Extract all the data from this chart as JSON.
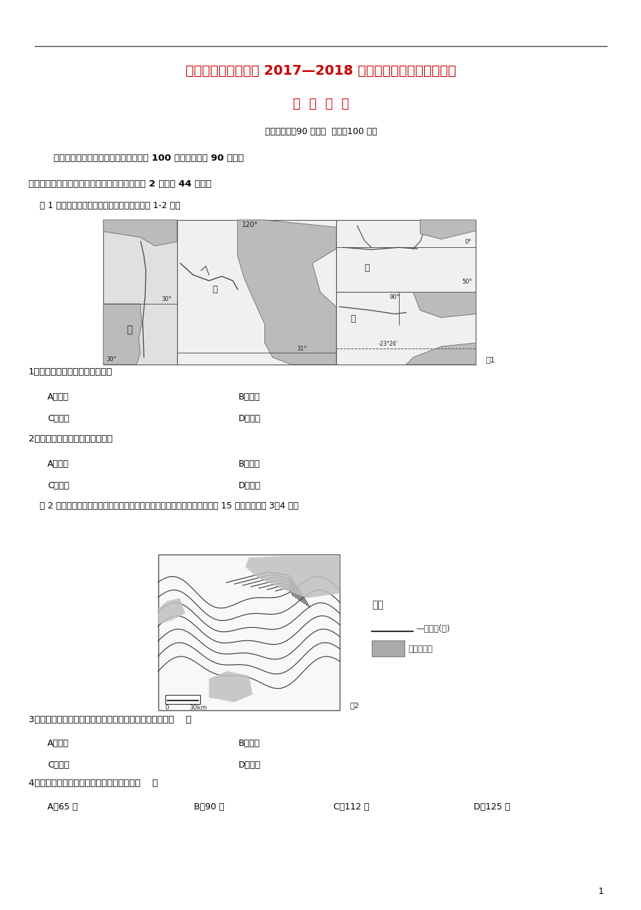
{
  "bg_color": "#ffffff",
  "page_width": 9.2,
  "page_height": 13.03,
  "title1": "周宁一中、政和一中 2017—2018 学年度第一学期第一次联考",
  "title2": "地  理  试  题",
  "subtitle": "（考试时间：90 分钟；  满分：100 分）",
  "intro": "本试卷分选择题和综合题两部分。满分 100 分，考试时间 90 分钟。",
  "section1": "一、选择题：（每小题只有一个正确答案，每题 2 分，共 44 分。）",
  "fig1_caption": "    图 1 为不同区域的四条河流示意图，读图完成 1-2 题。",
  "fig1_label": "图1",
  "q1": "1．四条河流中流量变化最小的是",
  "q1_A": "A．甲河",
  "q1_B": "B．乙河",
  "q1_C": "C．丙河",
  "q1_D": "D．丁河",
  "q2": "2．四条河流中航运价值最高的是",
  "q2_A": "A．甲河",
  "q2_B": "B．乙河",
  "q2_C": "C．丙河",
  "q2_D": "D．丁河",
  "fig2_caption": "    图 2 示意我国黄土高原某地林木的分布状况，图中相邻等高线之间高差均为 15 米。读图回答 3～4 题。",
  "legend_title": "图例",
  "legend_line_label": "—等高线(米)",
  "legend_fill_label": "林木密集区",
  "fig2_label": "图2",
  "q3": "3．林木生长与土壤水分条件相关，图中林木密集区位于（    ）",
  "q3_A": "A．山谷",
  "q3_B": "B．山脊",
  "q3_C": "C．鞍部",
  "q3_D": "D．山顶",
  "q4": "4．图示区域内东、西两侧最大高差可能是（    ）",
  "q4_A": "A．65 米",
  "q4_B": "B．90 米",
  "q4_C": "C．112 米",
  "q4_D": "D．125 米",
  "page_num": "1",
  "title_color": "#cc0000",
  "text_color": "#000000",
  "line_color": "#333333"
}
